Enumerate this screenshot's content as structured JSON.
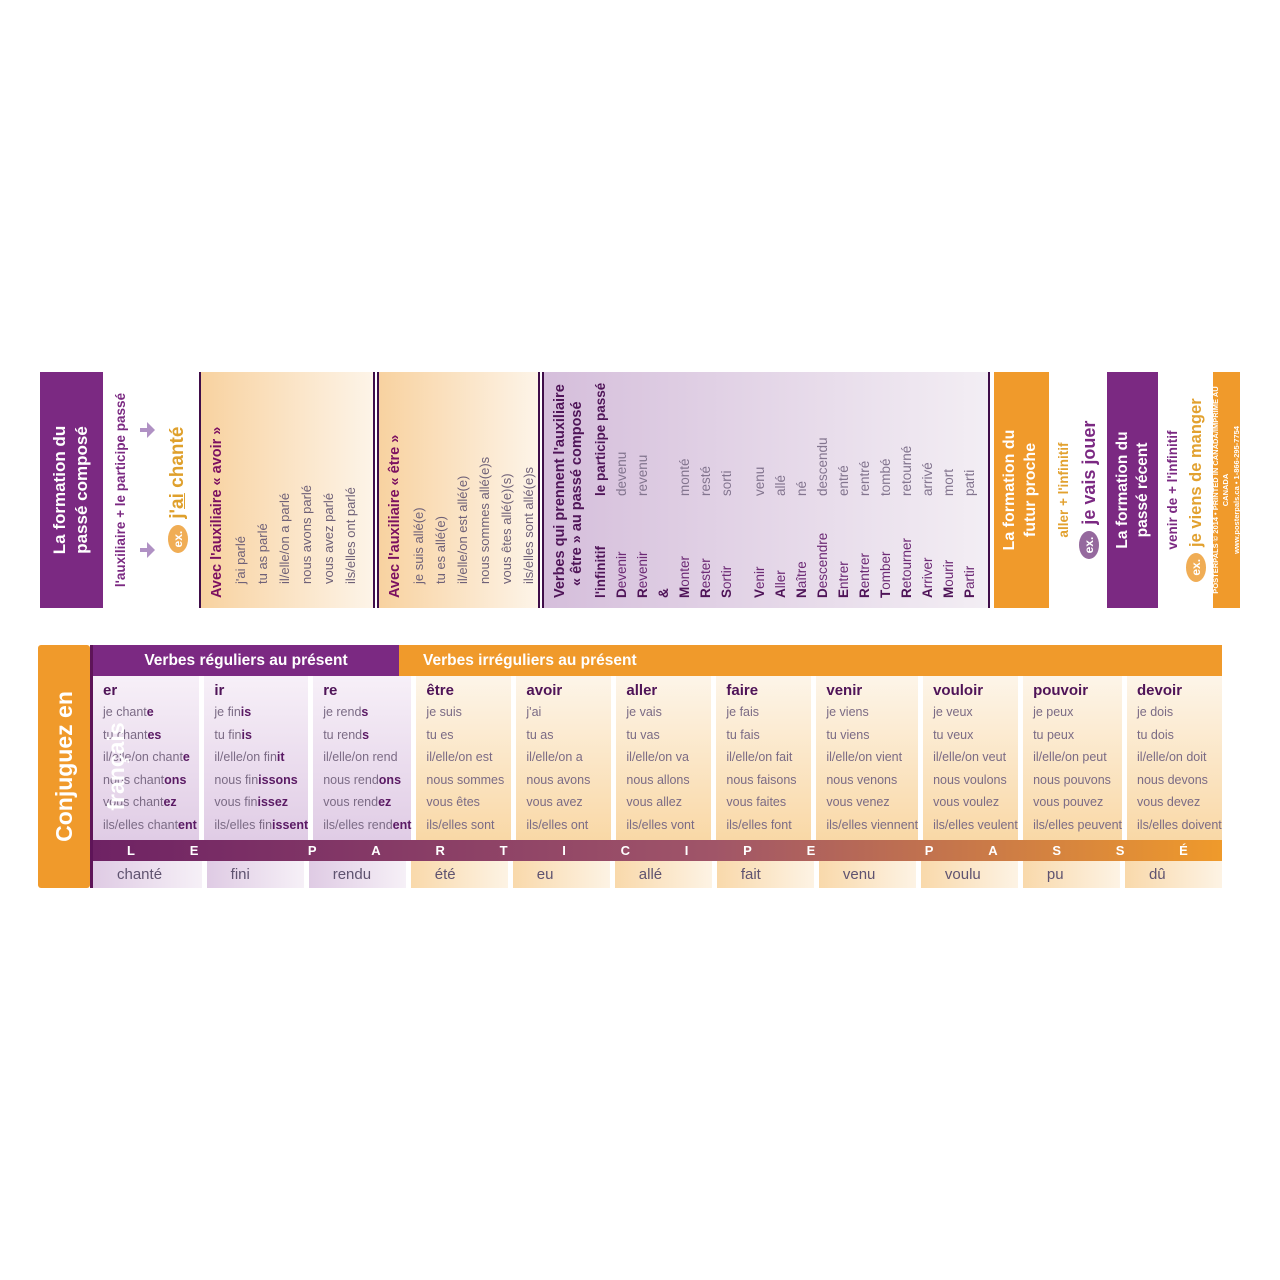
{
  "colors": {
    "purple": "#7b2982",
    "orange": "#f09a2b",
    "gold": "#dfa02c",
    "dark_purple": "#4f1458",
    "arrow_lavender": "#b091c4"
  },
  "top_strip": {
    "passe_compose_header": {
      "line1": "La formation du",
      "line2": "passé composé"
    },
    "formula": {
      "text": "l'auxiliaire + le participe passé",
      "example_label": "ex.",
      "example_pre": "j'",
      "example_underlined": "ai",
      "example_post": " chanté"
    },
    "avoir_box": {
      "heading": "Avec l'auxiliaire « avoir »",
      "forms": [
        "j'ai parlé",
        "tu as parlé",
        "il/elle/on a parlé",
        "nous avons parlé",
        "vous avez parlé",
        "ils/elles ont parlé"
      ]
    },
    "etre_box": {
      "heading": "Avec l'auxiliaire « être »",
      "forms": [
        "je suis allé(e)",
        "tu es allé(e)",
        "il/elle/on est allé(e)",
        "nous sommes allé(e)s",
        "vous êtes allé(e)(s)",
        "ils/elles sont allé(e)s"
      ]
    },
    "etre_verbs": {
      "heading1": "Verbes qui prennent l'auxiliaire",
      "heading2": "« être » au passé composé",
      "col_infinitif": "l'infinitif",
      "col_participe": "le participe passé",
      "rows": [
        [
          "D",
          "evenir",
          "devenu"
        ],
        [
          "R",
          "evenir",
          "revenu"
        ],
        [
          "&",
          "",
          ""
        ],
        [
          "M",
          "onter",
          "monté"
        ],
        [
          "R",
          "ester",
          "resté"
        ],
        [
          "S",
          "ortir",
          "sorti"
        ],
        null,
        [
          "V",
          "enir",
          "venu"
        ],
        [
          "A",
          "ller",
          "allé"
        ],
        [
          "N",
          "aître",
          "né"
        ],
        [
          "D",
          "escendre",
          "descendu"
        ],
        [
          "E",
          "ntrer",
          "entré"
        ],
        [
          "R",
          "entrer",
          "rentré"
        ],
        [
          "T",
          "omber",
          "tombé"
        ],
        [
          "R",
          "etourner",
          "retourné"
        ],
        [
          "A",
          "rriver",
          "arrivé"
        ],
        [
          "M",
          "ourir",
          "mort"
        ],
        [
          "P",
          "artir",
          "parti"
        ]
      ]
    },
    "futur_proche_header": {
      "line1": "La formation du",
      "line2": "futur proche"
    },
    "futur_formula": {
      "text": "aller + l'infinitif",
      "example_label": "ex.",
      "example": "je vais jouer"
    },
    "passe_recent_header": {
      "line1": "La formation du",
      "line2": "passé récent"
    },
    "recent_formula": {
      "text": "venir de + l'infinitif",
      "example_label": "ex.",
      "example": "je viens de manger"
    },
    "copyright": {
      "line1": "POSTERPALS © 2014 • PRINTED IN CANADA/IMPRIMÉ AU CANADA",
      "line2": "www.posterpals.ca • 1-866-295-7754"
    }
  },
  "bottom_strip": {
    "sidebar_title": "Conjuguez en français",
    "header_regular": "Verbes réguliers au présent",
    "header_irregular": "Verbes irréguliers au présent",
    "participle_banner": "LE PARTICIPE PASSÉ",
    "columns": [
      {
        "heading": "er",
        "type": "regular",
        "forms": [
          [
            "je chant",
            "e"
          ],
          [
            "tu chant",
            "es"
          ],
          [
            "il/elle/on chant",
            "e"
          ],
          [
            "nous chant",
            "ons"
          ],
          [
            "vous chant",
            "ez"
          ],
          [
            "ils/elles chant",
            "ent"
          ]
        ],
        "participle": "chanté"
      },
      {
        "heading": "ir",
        "type": "regular",
        "forms": [
          [
            "je fin",
            "is"
          ],
          [
            "tu fin",
            "is"
          ],
          [
            "il/elle/on fin",
            "it"
          ],
          [
            "nous fin",
            "issons"
          ],
          [
            "vous fin",
            "issez"
          ],
          [
            "ils/elles fin",
            "issent"
          ]
        ],
        "participle": "fini"
      },
      {
        "heading": "re",
        "type": "regular",
        "forms": [
          [
            "je rend",
            "s"
          ],
          [
            "tu rend",
            "s"
          ],
          [
            "il/elle/on rend",
            ""
          ],
          [
            "nous rend",
            "ons"
          ],
          [
            "vous rend",
            "ez"
          ],
          [
            "ils/elles rend",
            "ent"
          ]
        ],
        "participle": "rendu"
      },
      {
        "heading": "être",
        "type": "irregular",
        "forms": [
          [
            "je suis",
            ""
          ],
          [
            "tu es",
            ""
          ],
          [
            "il/elle/on est",
            ""
          ],
          [
            "nous sommes",
            ""
          ],
          [
            "vous êtes",
            ""
          ],
          [
            "ils/elles sont",
            ""
          ]
        ],
        "participle": "été"
      },
      {
        "heading": "avoir",
        "type": "irregular",
        "forms": [
          [
            "j'ai",
            ""
          ],
          [
            "tu as",
            ""
          ],
          [
            "il/elle/on a",
            ""
          ],
          [
            "nous avons",
            ""
          ],
          [
            "vous avez",
            ""
          ],
          [
            "ils/elles ont",
            ""
          ]
        ],
        "participle": "eu"
      },
      {
        "heading": "aller",
        "type": "irregular",
        "forms": [
          [
            "je vais",
            ""
          ],
          [
            "tu vas",
            ""
          ],
          [
            "il/elle/on va",
            ""
          ],
          [
            "nous allons",
            ""
          ],
          [
            "vous allez",
            ""
          ],
          [
            "ils/elles vont",
            ""
          ]
        ],
        "participle": "allé"
      },
      {
        "heading": "faire",
        "type": "irregular",
        "forms": [
          [
            "je fais",
            ""
          ],
          [
            "tu fais",
            ""
          ],
          [
            "il/elle/on fait",
            ""
          ],
          [
            "nous faisons",
            ""
          ],
          [
            "vous faites",
            ""
          ],
          [
            "ils/elles font",
            ""
          ]
        ],
        "participle": "fait"
      },
      {
        "heading": "venir",
        "type": "irregular",
        "forms": [
          [
            "je viens",
            ""
          ],
          [
            "tu viens",
            ""
          ],
          [
            "il/elle/on vient",
            ""
          ],
          [
            "nous venons",
            ""
          ],
          [
            "vous venez",
            ""
          ],
          [
            "ils/elles viennent",
            ""
          ]
        ],
        "participle": "venu"
      },
      {
        "heading": "vouloir",
        "type": "irregular",
        "forms": [
          [
            "je veux",
            ""
          ],
          [
            "tu veux",
            ""
          ],
          [
            "il/elle/on veut",
            ""
          ],
          [
            "nous voulons",
            ""
          ],
          [
            "vous voulez",
            ""
          ],
          [
            "ils/elles veulent",
            ""
          ]
        ],
        "participle": "voulu"
      },
      {
        "heading": "pouvoir",
        "type": "irregular",
        "forms": [
          [
            "je peux",
            ""
          ],
          [
            "tu peux",
            ""
          ],
          [
            "il/elle/on peut",
            ""
          ],
          [
            "nous pouvons",
            ""
          ],
          [
            "vous pouvez",
            ""
          ],
          [
            "ils/elles peuvent",
            ""
          ]
        ],
        "participle": "pu"
      },
      {
        "heading": "devoir",
        "type": "irregular",
        "forms": [
          [
            "je dois",
            ""
          ],
          [
            "tu dois",
            ""
          ],
          [
            "il/elle/on doit",
            ""
          ],
          [
            "nous devons",
            ""
          ],
          [
            "vous devez",
            ""
          ],
          [
            "ils/elles doivent",
            ""
          ]
        ],
        "participle": "dû"
      }
    ]
  }
}
